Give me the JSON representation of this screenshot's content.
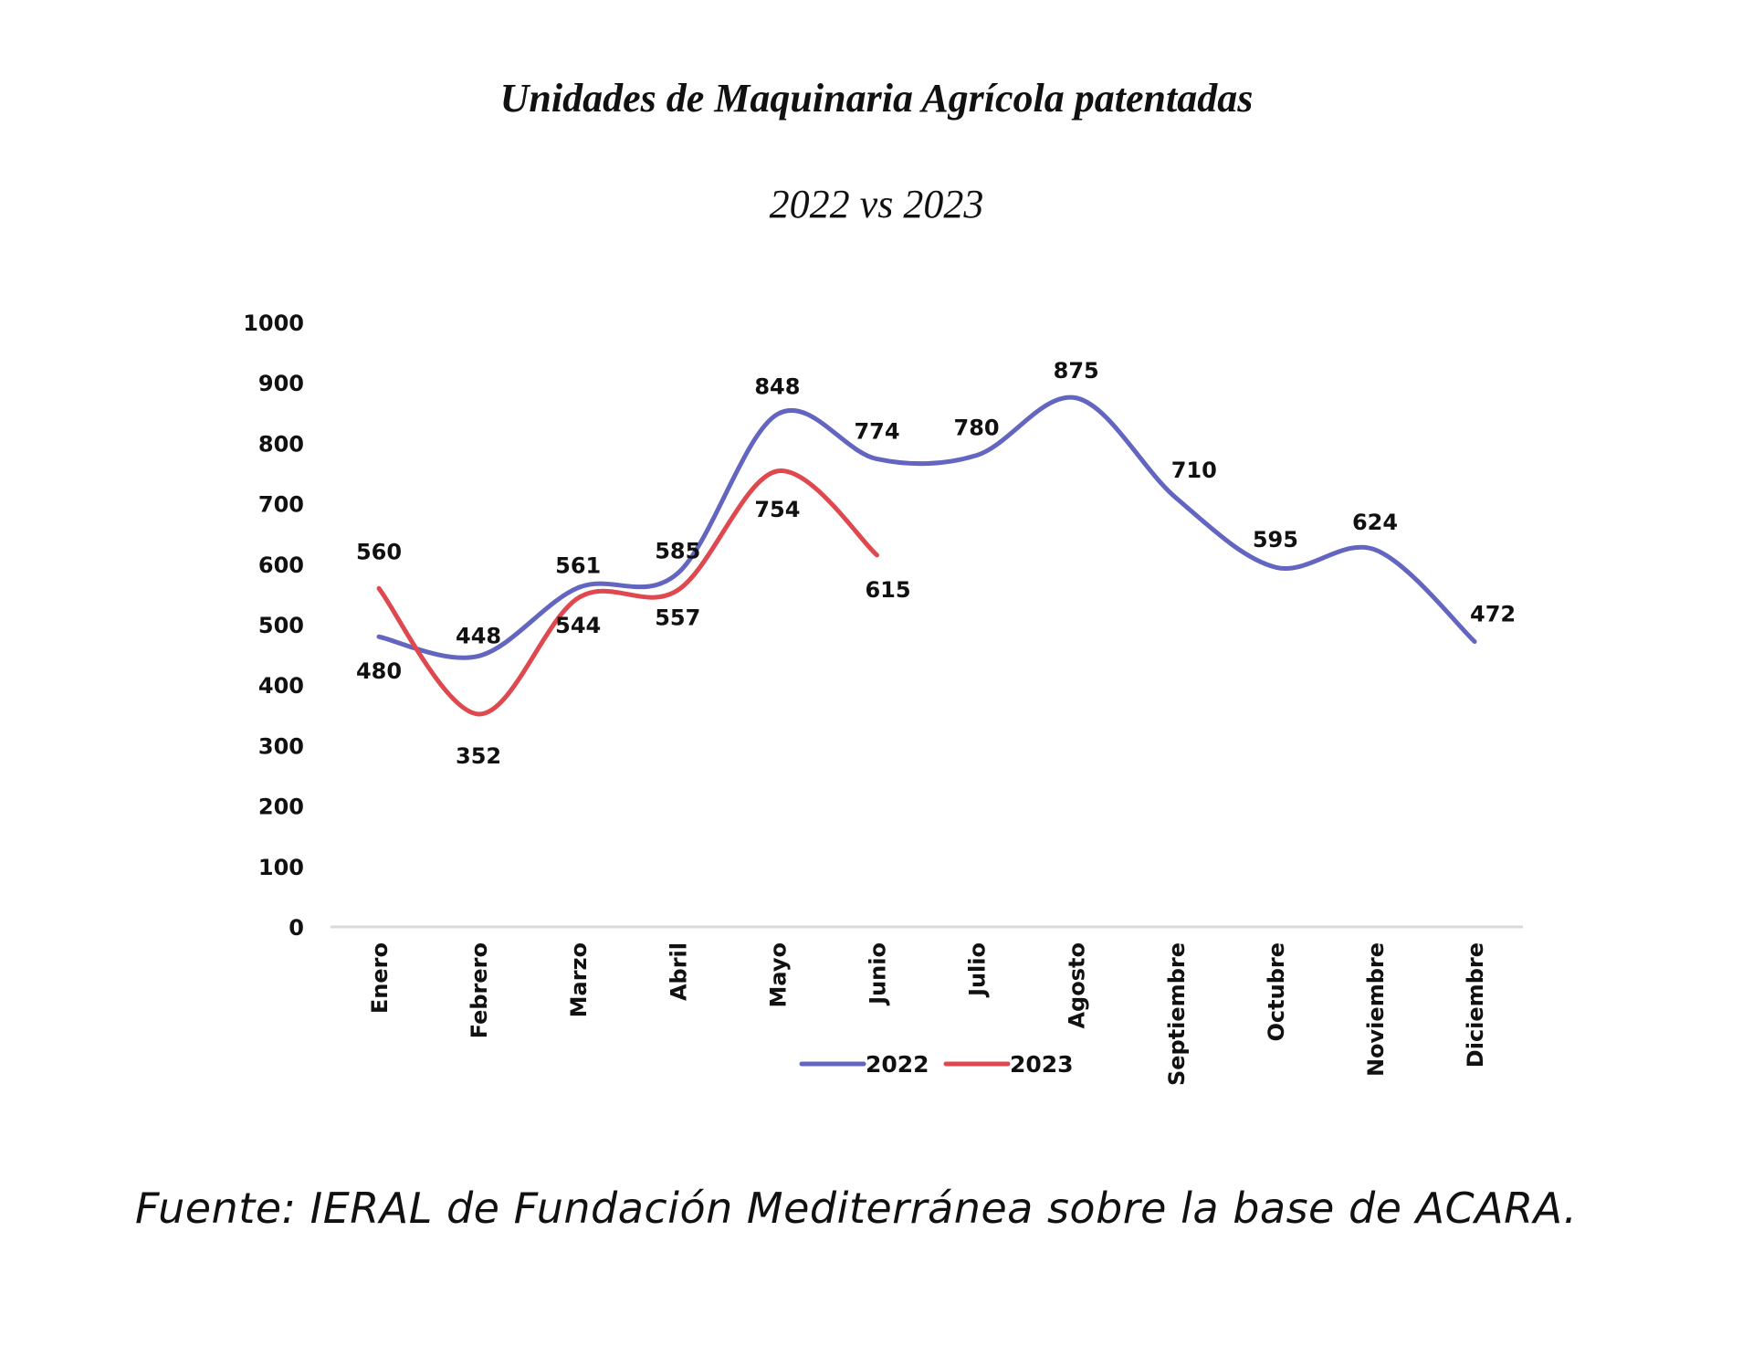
{
  "chart_data": {
    "type": "line",
    "title": "Unidades de Maquinaria Agrícola patentadas",
    "subtitle": "2022 vs 2023",
    "xlabel": "",
    "ylabel": "",
    "ylim": [
      0,
      1000
    ],
    "yticks": [
      0,
      100,
      200,
      300,
      400,
      500,
      600,
      700,
      800,
      900,
      1000
    ],
    "grid": false,
    "legend": "bottom",
    "categories": [
      "Enero",
      "Febrero",
      "Marzo",
      "Abril",
      "Mayo",
      "Junio",
      "Julio",
      "Agosto",
      "Septiembre",
      "Octubre",
      "Noviembre",
      "Diciembre"
    ],
    "series": [
      {
        "name": "2022",
        "color": "#6366c0",
        "values": [
          480,
          448,
          561,
          585,
          848,
          774,
          780,
          875,
          710,
          595,
          624,
          472
        ]
      },
      {
        "name": "2023",
        "color": "#e0484f",
        "values": [
          560,
          352,
          544,
          557,
          754,
          615,
          null,
          null,
          null,
          null,
          null,
          null
        ]
      }
    ]
  },
  "source": "Fuente: IERAL de Fundación Mediterránea sobre la base de ACARA."
}
